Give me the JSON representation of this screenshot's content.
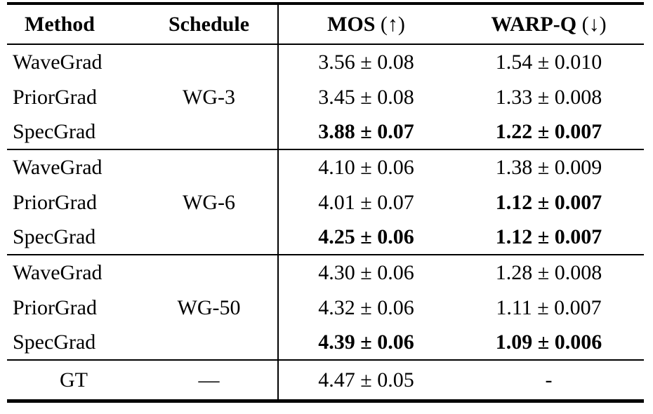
{
  "colors": {
    "text": "#000000",
    "background": "#ffffff",
    "rule": "#000000"
  },
  "table": {
    "header": {
      "method": "Method",
      "schedule": "Schedule",
      "mos_label": "MOS",
      "mos_direction": "(↑)",
      "warpq_label": "WARP-Q",
      "warpq_direction": "(↓)"
    },
    "groups": [
      {
        "schedule": "WG-3",
        "rows": [
          {
            "method": "WaveGrad",
            "mos": "3.56 ± 0.08",
            "warpq": "1.54 ± 0.010",
            "mos_bold": false,
            "warpq_bold": false
          },
          {
            "method": "PriorGrad",
            "mos": "3.45 ± 0.08",
            "warpq": "1.33 ± 0.008",
            "mos_bold": false,
            "warpq_bold": false
          },
          {
            "method": "SpecGrad",
            "mos": "3.88 ± 0.07",
            "warpq": "1.22 ± 0.007",
            "mos_bold": true,
            "warpq_bold": true
          }
        ]
      },
      {
        "schedule": "WG-6",
        "rows": [
          {
            "method": "WaveGrad",
            "mos": "4.10 ± 0.06",
            "warpq": "1.38 ± 0.009",
            "mos_bold": false,
            "warpq_bold": false
          },
          {
            "method": "PriorGrad",
            "mos": "4.01 ± 0.07",
            "warpq": "1.12 ± 0.007",
            "mos_bold": false,
            "warpq_bold": true
          },
          {
            "method": "SpecGrad",
            "mos": "4.25 ± 0.06",
            "warpq": "1.12 ± 0.007",
            "mos_bold": true,
            "warpq_bold": true
          }
        ]
      },
      {
        "schedule": "WG-50",
        "rows": [
          {
            "method": "WaveGrad",
            "mos": "4.30 ± 0.06",
            "warpq": "1.28 ± 0.008",
            "mos_bold": false,
            "warpq_bold": false
          },
          {
            "method": "PriorGrad",
            "mos": "4.32 ± 0.06",
            "warpq": "1.11 ± 0.007",
            "mos_bold": false,
            "warpq_bold": false
          },
          {
            "method": "SpecGrad",
            "mos": "4.39 ± 0.06",
            "warpq": "1.09 ± 0.006",
            "mos_bold": true,
            "warpq_bold": true
          }
        ]
      }
    ],
    "gt": {
      "method": "GT",
      "schedule": "—",
      "mos": "4.47 ± 0.05",
      "warpq": "-"
    }
  }
}
